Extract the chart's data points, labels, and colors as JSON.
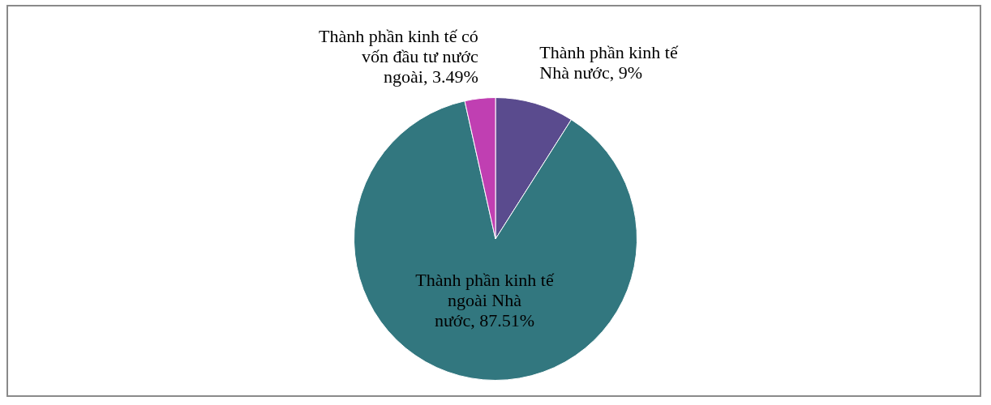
{
  "chart_data": {
    "type": "pie",
    "categories": [
      "Thành phần kinh tế Nhà nước",
      "Thành phần kinh tế ngoài Nhà nước",
      "Thành phần kinh tế có vốn đầu tư nước ngoài"
    ],
    "values": [
      9,
      87.51,
      3.49
    ],
    "value_labels": [
      "9%",
      "87.51%",
      "3.49%"
    ],
    "colors": [
      "#5a4b8e",
      "#32777f",
      "#c03fb2"
    ],
    "legend": false
  }
}
